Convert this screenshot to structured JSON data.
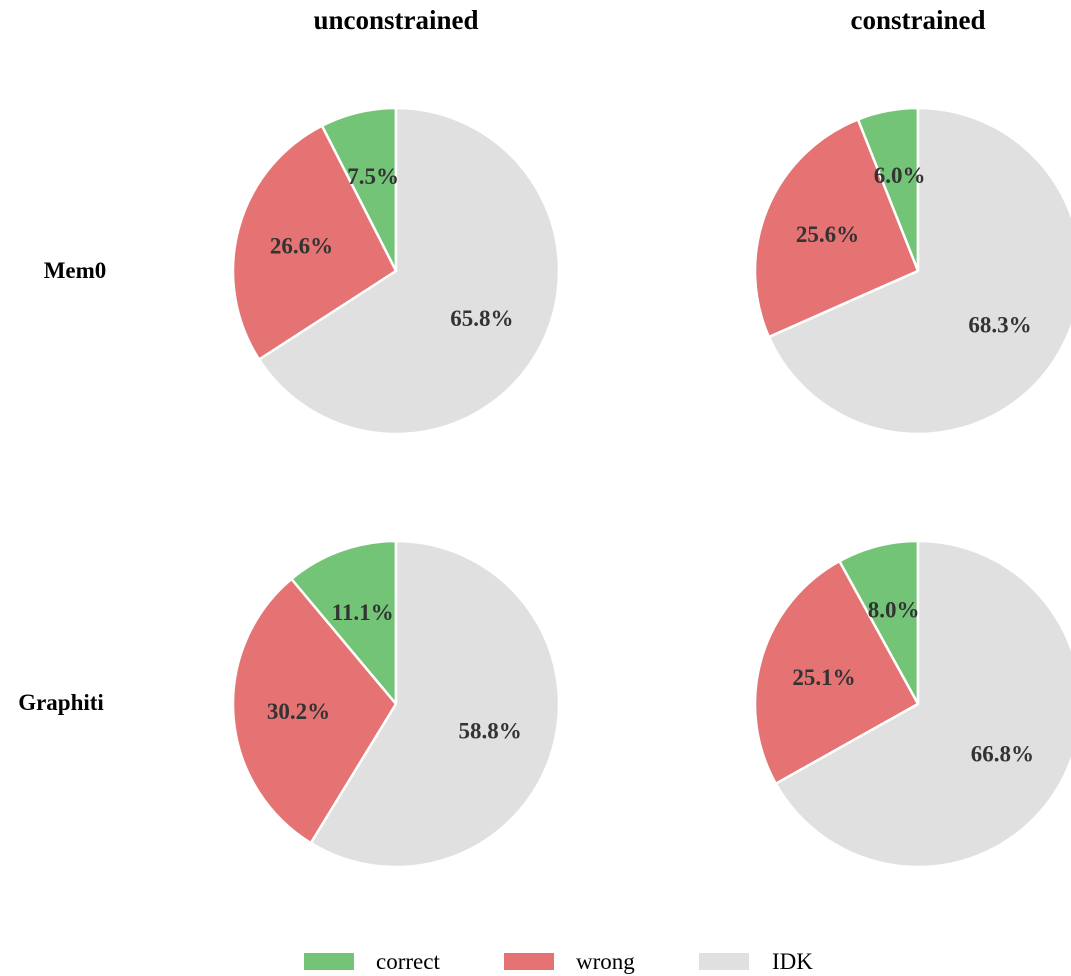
{
  "chart_data": {
    "type": "pie",
    "columns": [
      "unconstrained",
      "constrained"
    ],
    "rows": [
      "Mem0",
      "Graphiti"
    ],
    "categories": [
      "correct",
      "wrong",
      "IDK"
    ],
    "colors": {
      "correct": "#73c476",
      "wrong": "#e57373",
      "IDK": "#e0e0e0"
    },
    "legend": {
      "position": "bottom-center",
      "entries": [
        "correct",
        "wrong",
        "IDK"
      ]
    },
    "pies": [
      {
        "row": "Mem0",
        "column": "unconstrained",
        "values": [
          7.5,
          26.6,
          65.8
        ],
        "labels": [
          "7.5%",
          "26.6%",
          "65.8%"
        ]
      },
      {
        "row": "Mem0",
        "column": "constrained",
        "values": [
          6.0,
          25.6,
          68.3
        ],
        "labels": [
          "6.0%",
          "25.6%",
          "68.3%"
        ]
      },
      {
        "row": "Graphiti",
        "column": "unconstrained",
        "values": [
          11.1,
          30.2,
          58.8
        ],
        "labels": [
          "11.1%",
          "30.2%",
          "58.8%"
        ]
      },
      {
        "row": "Graphiti",
        "column": "constrained",
        "values": [
          8.0,
          25.1,
          66.8
        ],
        "labels": [
          "8.0%",
          "25.1%",
          "66.8%"
        ]
      }
    ]
  }
}
